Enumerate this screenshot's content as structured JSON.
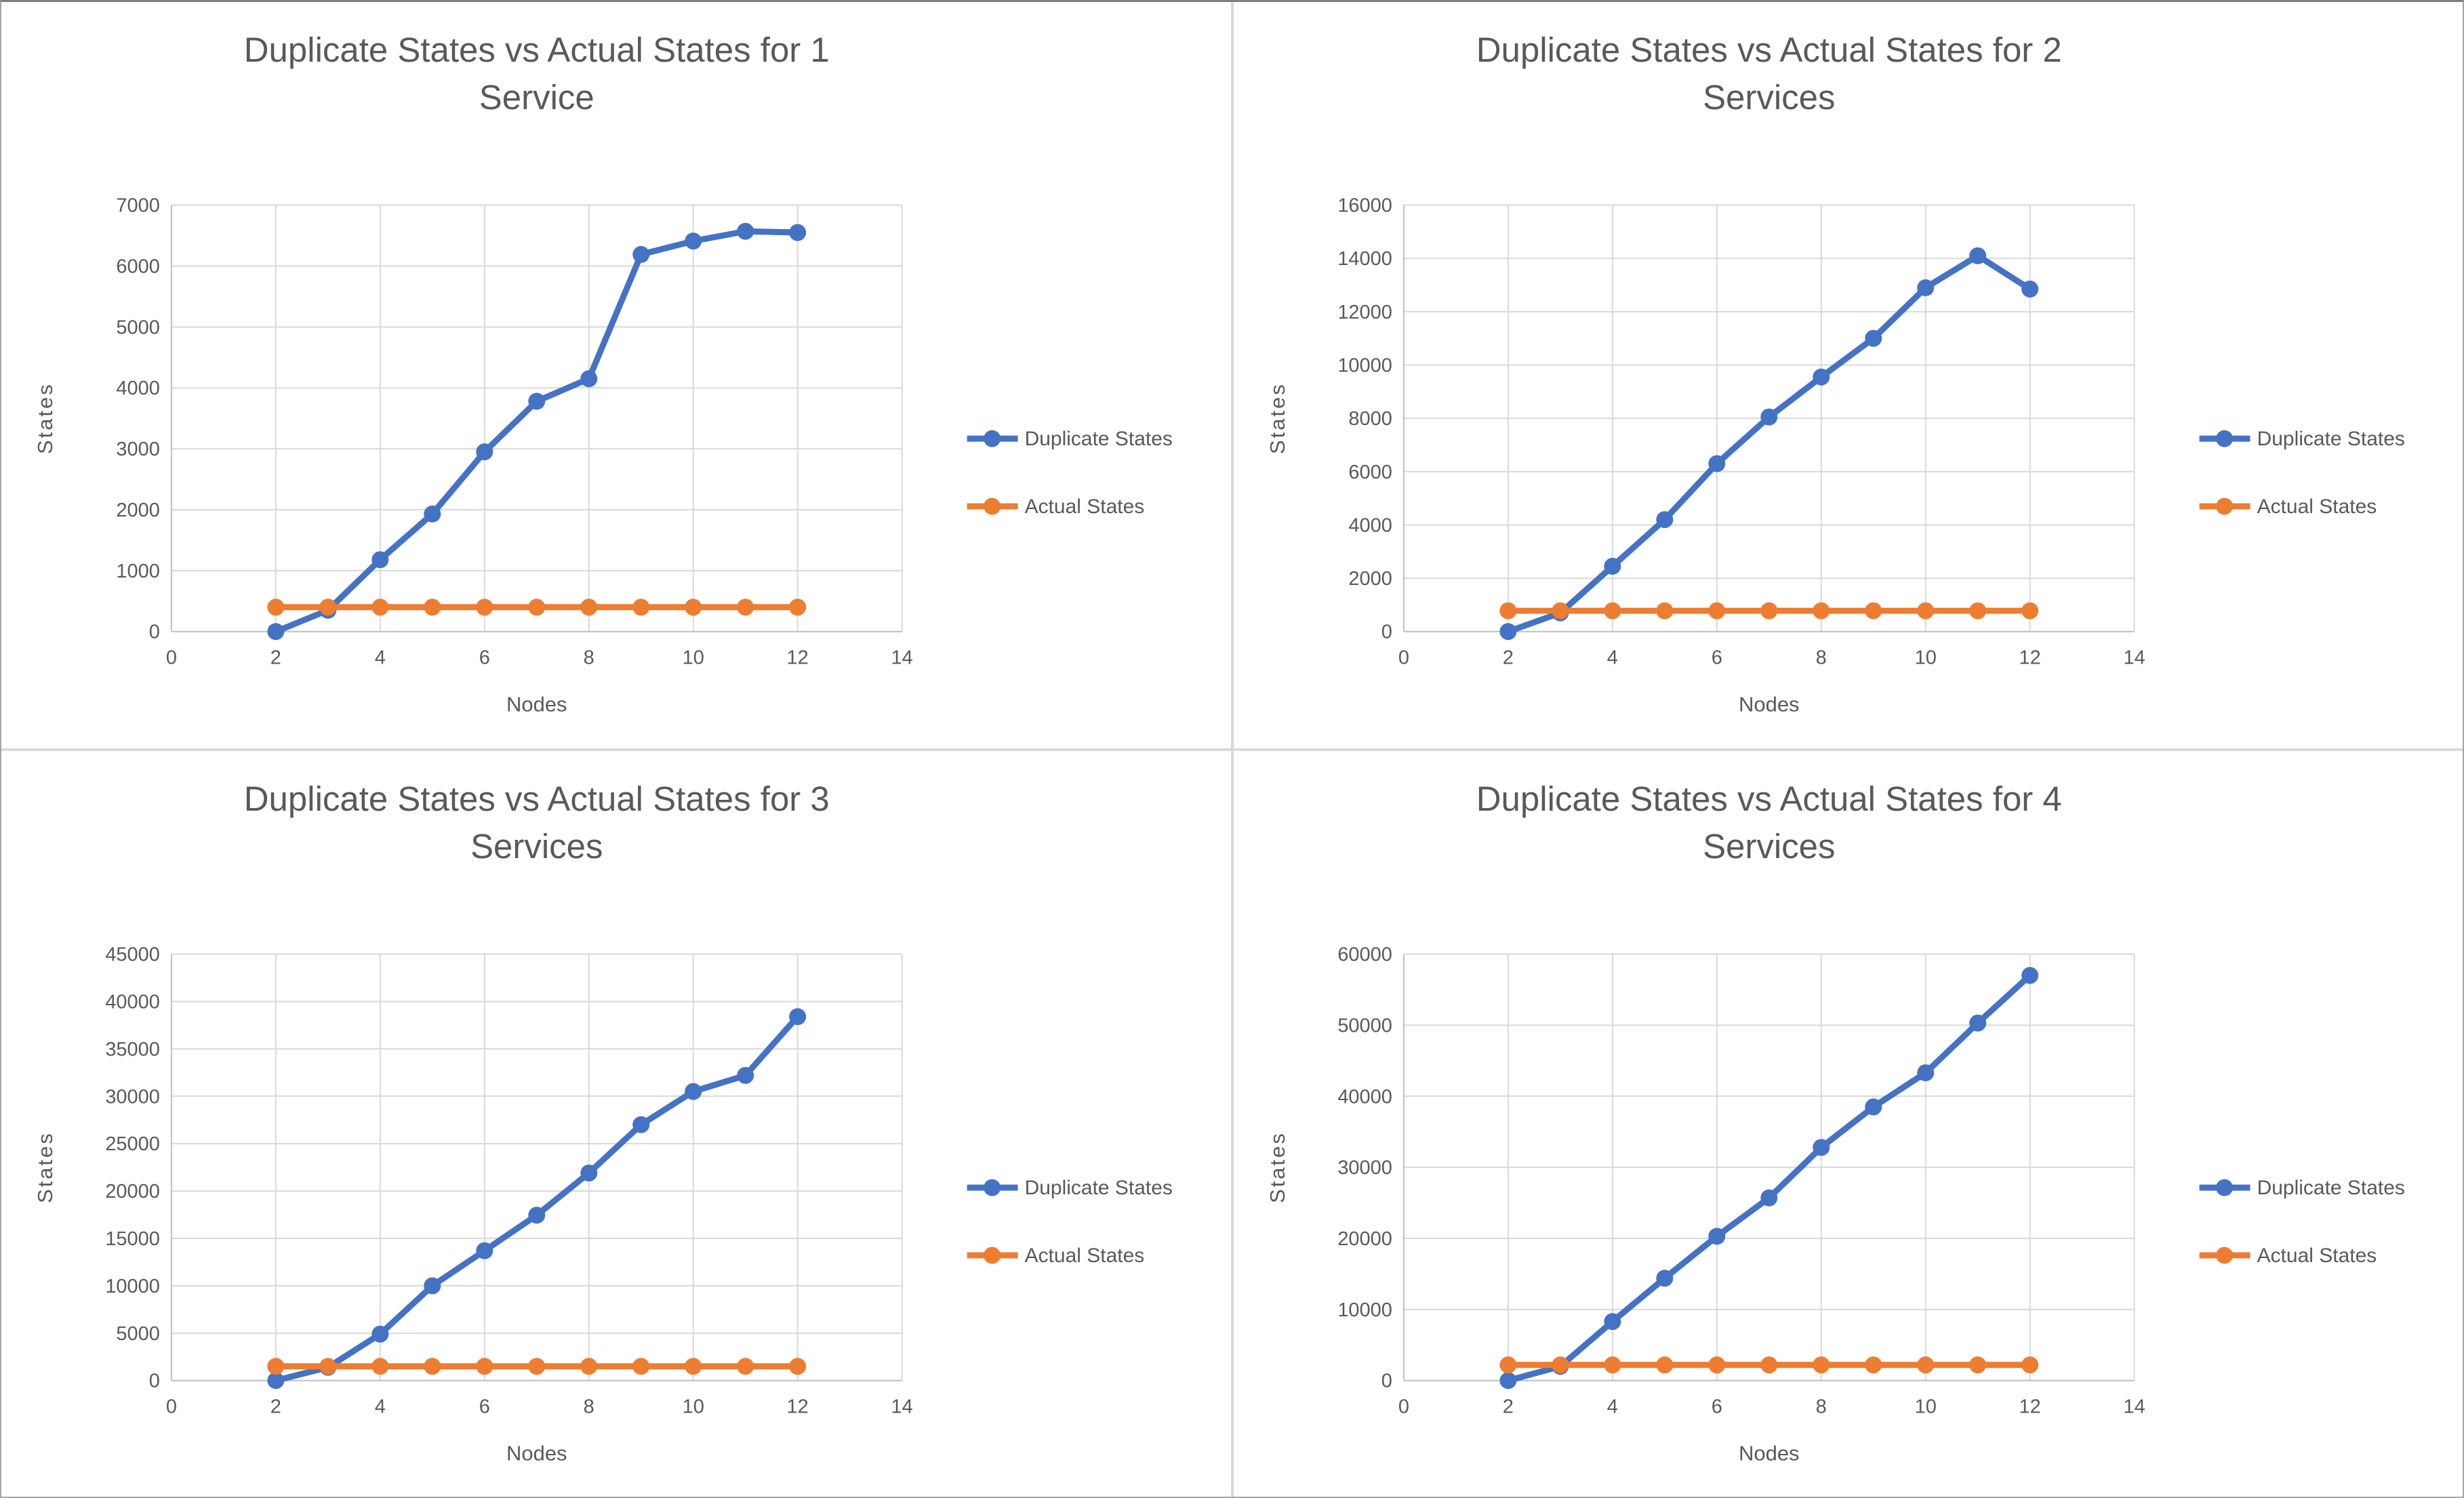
{
  "style": {
    "series_colors": {
      "duplicate": "#4472C4",
      "actual": "#ED7D31"
    },
    "text_color": "#595959",
    "gridline_color": "#D9D9D9",
    "axis_line_color": "#BFBFBF",
    "panel_background": "#FFFFFF",
    "frame_color": "#A6A6A6"
  },
  "chart_data": [
    {
      "type": "line",
      "title": "Duplicate States vs Actual States for 1 Service",
      "title_lines": [
        "Duplicate States vs Actual States for 1",
        "Service"
      ],
      "xlabel": "Nodes",
      "ylabel": "States",
      "x": [
        2,
        3,
        4,
        5,
        6,
        7,
        8,
        9,
        10,
        11,
        12
      ],
      "series": [
        {
          "name": "Duplicate States",
          "color_key": "duplicate",
          "values": [
            0,
            350,
            1180,
            1930,
            2950,
            3780,
            4150,
            6190,
            6410,
            6570,
            6550
          ]
        },
        {
          "name": "Actual States",
          "color_key": "actual",
          "values": [
            400,
            400,
            400,
            400,
            400,
            400,
            400,
            400,
            400,
            400,
            400
          ]
        }
      ],
      "xlim": [
        0,
        14
      ],
      "xtick_step": 2,
      "ylim": [
        0,
        7000
      ],
      "ytick_step": 1000,
      "grid": true,
      "legend_position": "right",
      "legend": [
        "Duplicate States",
        "Actual States"
      ]
    },
    {
      "type": "line",
      "title": "Duplicate States vs Actual States for 2 Services",
      "title_lines": [
        "Duplicate States vs Actual States for 2",
        "Services"
      ],
      "xlabel": "Nodes",
      "ylabel": "States",
      "x": [
        2,
        3,
        4,
        5,
        6,
        7,
        8,
        9,
        10,
        11,
        12
      ],
      "series": [
        {
          "name": "Duplicate States",
          "color_key": "duplicate",
          "values": [
            0,
            700,
            2450,
            4200,
            6300,
            8050,
            9550,
            11000,
            12900,
            14100,
            12850
          ]
        },
        {
          "name": "Actual States",
          "color_key": "actual",
          "values": [
            780,
            780,
            780,
            780,
            780,
            780,
            780,
            780,
            780,
            780,
            780
          ]
        }
      ],
      "xlim": [
        0,
        14
      ],
      "xtick_step": 2,
      "ylim": [
        0,
        16000
      ],
      "ytick_step": 2000,
      "grid": true,
      "legend_position": "right",
      "legend": [
        "Duplicate States",
        "Actual States"
      ]
    },
    {
      "type": "line",
      "title": "Duplicate States vs Actual States for 3 Services",
      "title_lines": [
        "Duplicate States vs Actual States for 3",
        "Services"
      ],
      "xlabel": "Nodes",
      "ylabel": "States",
      "x": [
        2,
        3,
        4,
        5,
        6,
        7,
        8,
        9,
        10,
        11,
        12
      ],
      "series": [
        {
          "name": "Duplicate States",
          "color_key": "duplicate",
          "values": [
            0,
            1400,
            4900,
            10000,
            13700,
            17450,
            21900,
            27000,
            30500,
            32200,
            38400
          ]
        },
        {
          "name": "Actual States",
          "color_key": "actual",
          "values": [
            1500,
            1500,
            1500,
            1500,
            1500,
            1500,
            1500,
            1500,
            1500,
            1500,
            1500
          ]
        }
      ],
      "xlim": [
        0,
        14
      ],
      "xtick_step": 2,
      "ylim": [
        0,
        45000
      ],
      "ytick_step": 5000,
      "grid": true,
      "legend_position": "right",
      "legend": [
        "Duplicate States",
        "Actual States"
      ]
    },
    {
      "type": "line",
      "title": "Duplicate States vs Actual States for 4 Services",
      "title_lines": [
        "Duplicate States vs Actual States for 4",
        "Services"
      ],
      "xlabel": "Nodes",
      "ylabel": "States",
      "x": [
        2,
        3,
        4,
        5,
        6,
        7,
        8,
        9,
        10,
        11,
        12
      ],
      "series": [
        {
          "name": "Duplicate States",
          "color_key": "duplicate",
          "values": [
            0,
            2000,
            8300,
            14400,
            20300,
            25700,
            32800,
            38500,
            43300,
            50300,
            57000
          ]
        },
        {
          "name": "Actual States",
          "color_key": "actual",
          "values": [
            2200,
            2200,
            2200,
            2200,
            2200,
            2200,
            2200,
            2200,
            2200,
            2200,
            2200
          ]
        }
      ],
      "xlim": [
        0,
        14
      ],
      "xtick_step": 2,
      "ylim": [
        0,
        60000
      ],
      "ytick_step": 10000,
      "grid": true,
      "legend_position": "right",
      "legend": [
        "Duplicate States",
        "Actual States"
      ]
    }
  ]
}
